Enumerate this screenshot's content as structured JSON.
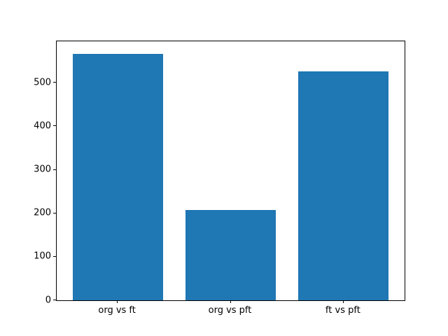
{
  "chart_data": {
    "type": "bar",
    "title": "",
    "xlabel": "",
    "ylabel": "",
    "categories": [
      "org vs ft",
      "org vs pft",
      "ft vs pft"
    ],
    "values": [
      567,
      207,
      526
    ],
    "yticks": [
      0,
      100,
      200,
      300,
      400,
      500
    ],
    "ylim": [
      0,
      595.35
    ],
    "bar_color": "#1f77b4",
    "axes_edge_color": "#000000",
    "background_color": "#ffffff",
    "grid": false,
    "legend": null
  }
}
